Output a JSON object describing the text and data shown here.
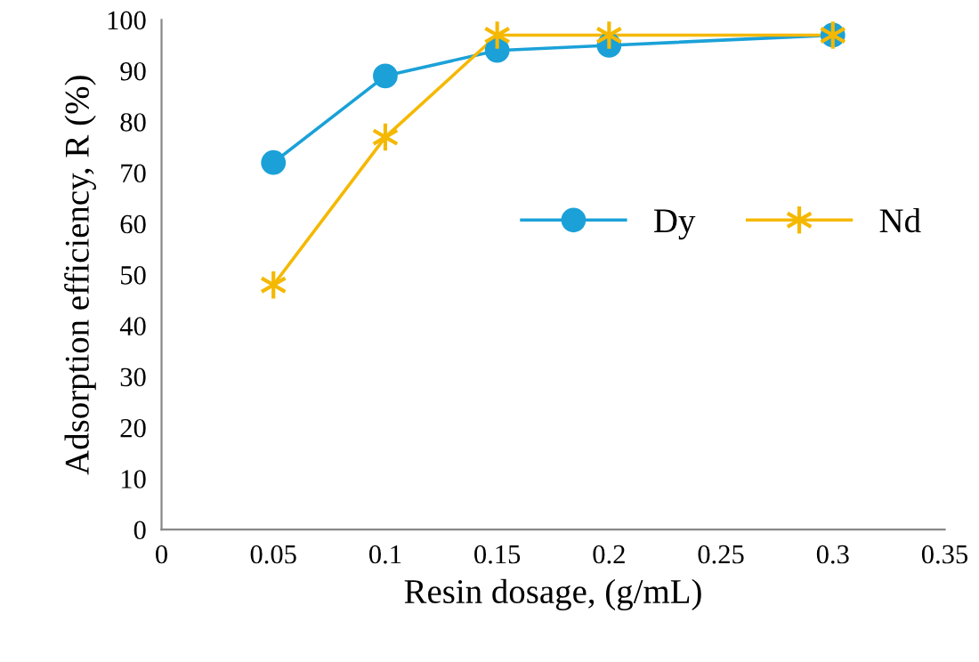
{
  "chart_data": {
    "type": "line",
    "xlabel": "Resin dosage, (g/mL)",
    "ylabel": "Adsorption efficiency, R (%)",
    "x": [
      0.05,
      0.1,
      0.15,
      0.2,
      0.3
    ],
    "series": [
      {
        "name": "Dy",
        "color": "#1ba1d8",
        "marker": "circle",
        "values": [
          72,
          89,
          94,
          95,
          97
        ]
      },
      {
        "name": "Nd",
        "color": "#f5b800",
        "marker": "cross",
        "values": [
          48,
          77,
          97,
          97,
          97
        ]
      }
    ],
    "xlim": [
      0,
      0.35
    ],
    "xticks": [
      0,
      0.05,
      0.1,
      0.15,
      0.2,
      0.25,
      0.3,
      0.35
    ],
    "ylim": [
      0,
      100
    ],
    "yticks": [
      0,
      10,
      20,
      30,
      40,
      50,
      60,
      70,
      80,
      90,
      100
    ],
    "grid": false,
    "legend": "right",
    "line_style": "solid"
  }
}
